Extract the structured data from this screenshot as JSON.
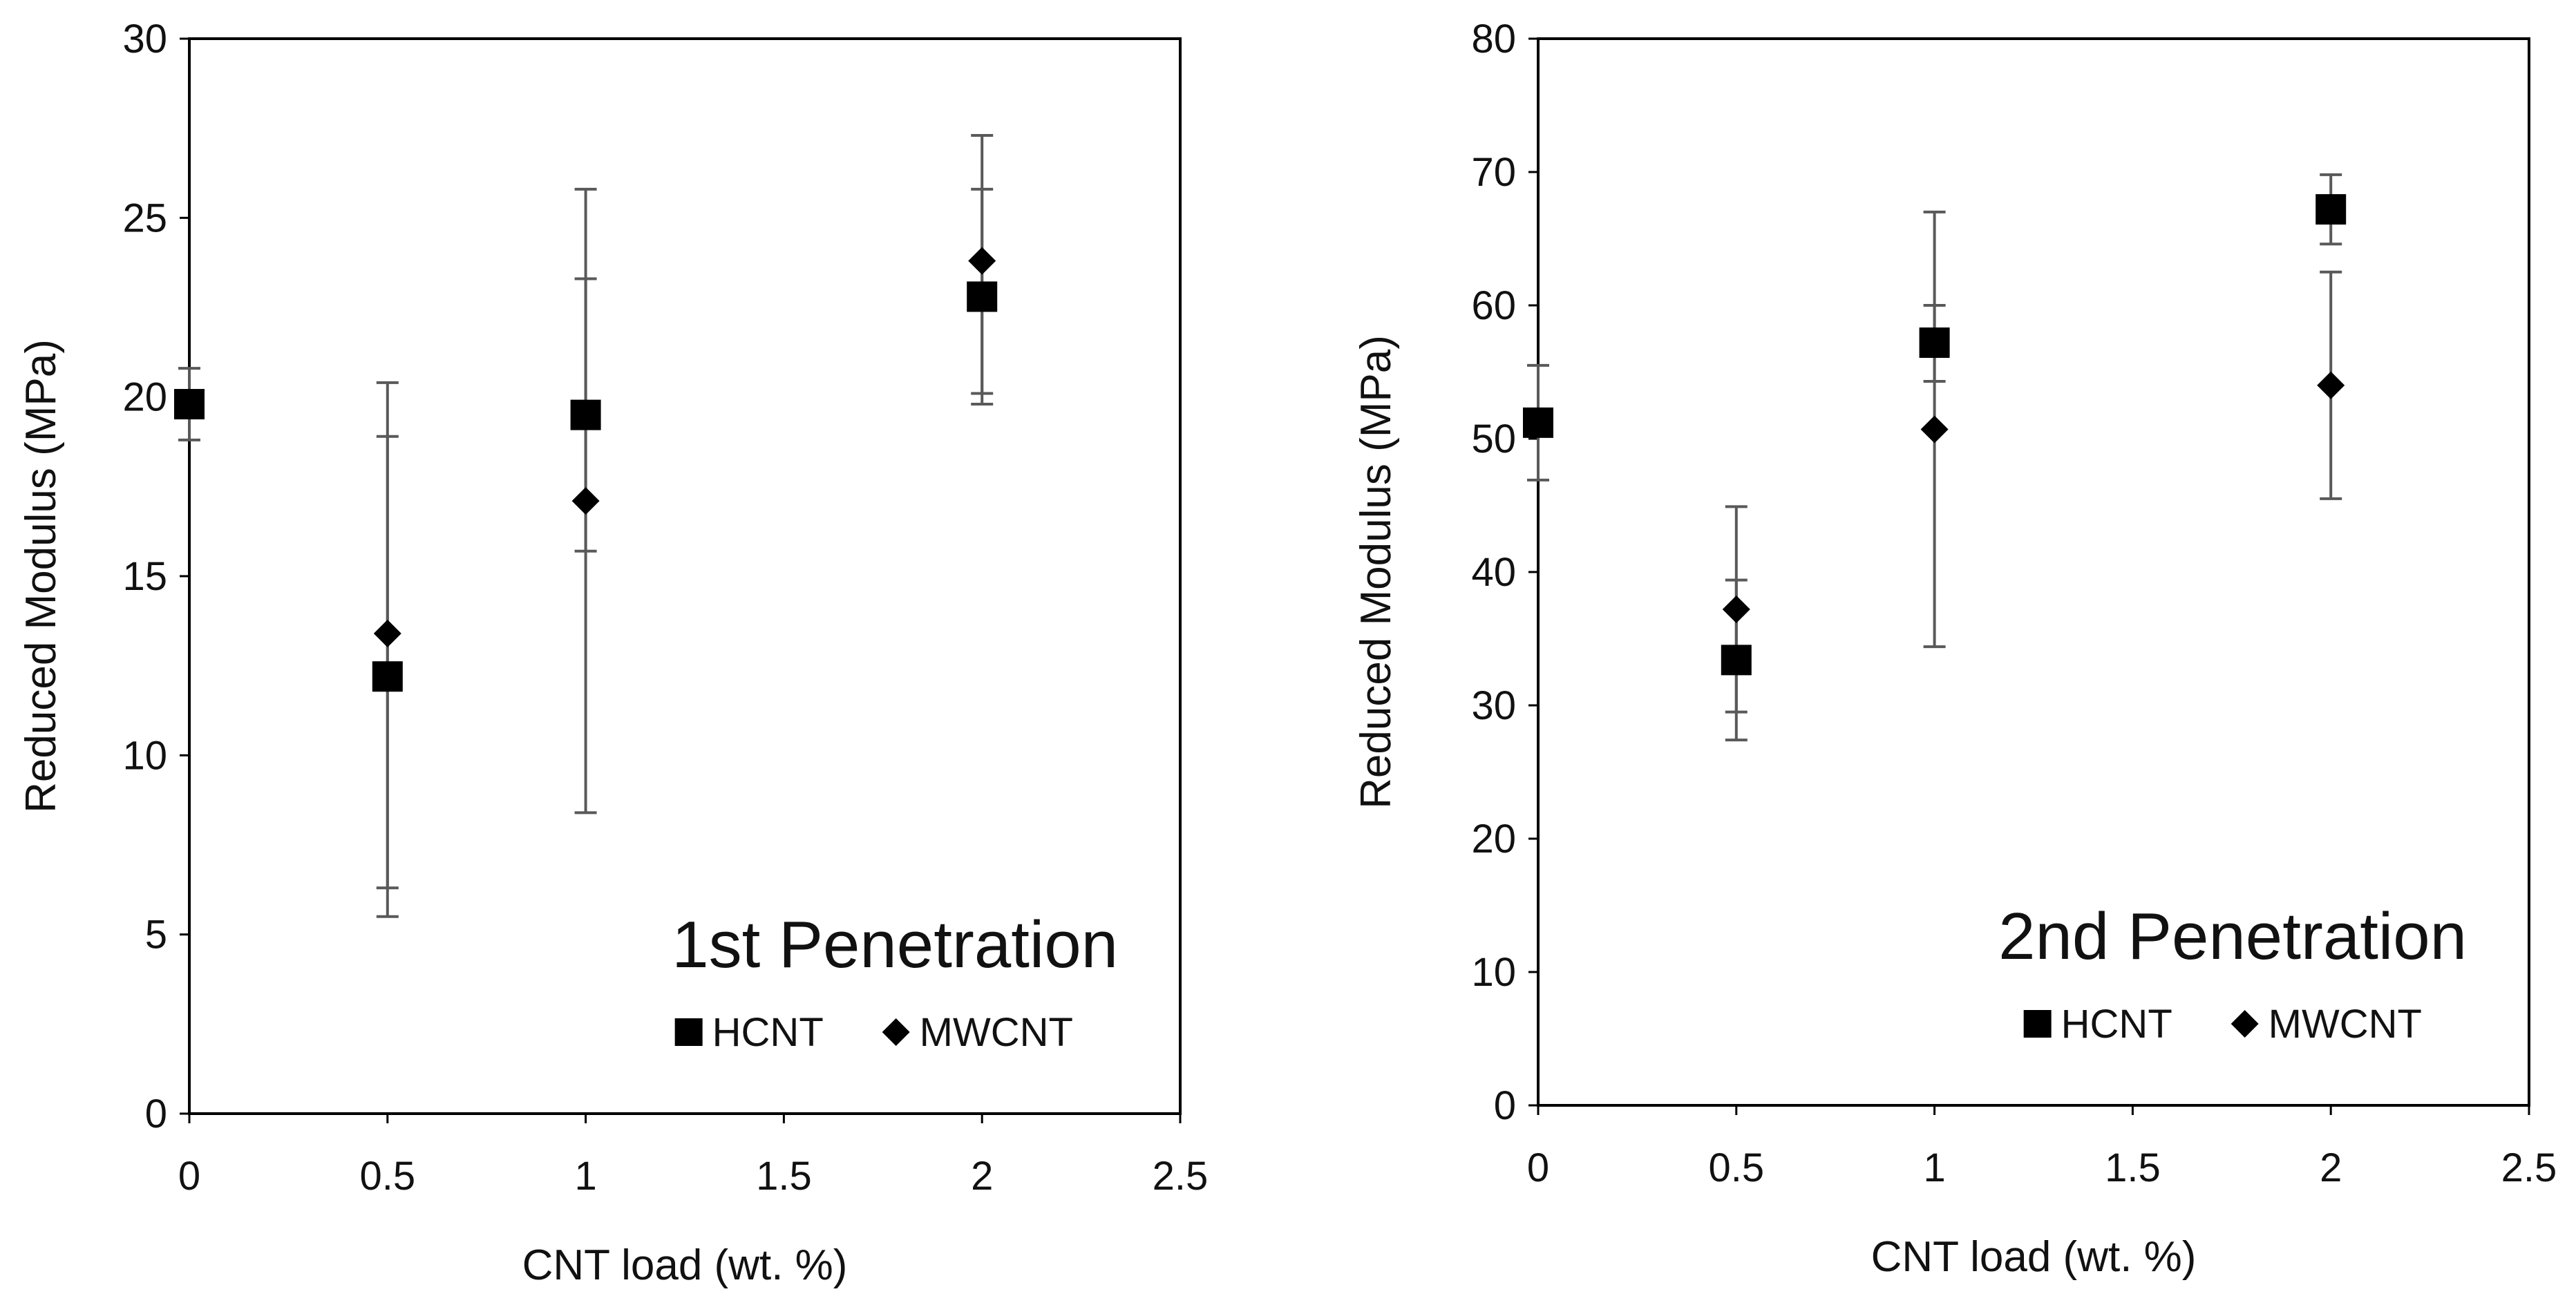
{
  "colors": {
    "marker": "#000000",
    "errorbar": "#595959",
    "frame": "#000000",
    "text": "#111111"
  },
  "chart_data": [
    {
      "type": "scatter",
      "annotation": "1st Penetration",
      "xlabel": "CNT load (wt. %)",
      "ylabel": "Reduced Modulus (MPa)",
      "xlim": [
        0,
        2.5
      ],
      "ylim": [
        0,
        30
      ],
      "xticks": [
        0,
        0.5,
        1,
        1.5,
        2,
        2.5
      ],
      "xtick_labels": [
        "0",
        "0.5",
        "1",
        "1.5",
        "2",
        "2.5"
      ],
      "yticks": [
        0,
        5,
        10,
        15,
        20,
        25,
        30
      ],
      "ytick_labels": [
        "0",
        "5",
        "10",
        "15",
        "20",
        "25",
        "30"
      ],
      "legend_position": "bottom-right",
      "series": [
        {
          "name": "HCNT",
          "marker": "square",
          "x": [
            0,
            0.5,
            1,
            2
          ],
          "y": [
            19.8,
            12.2,
            19.5,
            22.8
          ],
          "err_low": [
            18.8,
            6.3,
            15.7,
            20.1
          ],
          "err_high": [
            20.8,
            18.9,
            23.3,
            25.8
          ]
        },
        {
          "name": "MWCNT",
          "marker": "diamond",
          "x": [
            0.5,
            1,
            2
          ],
          "y": [
            13.4,
            17.1,
            23.8
          ],
          "err_low": [
            5.5,
            8.4,
            19.8
          ],
          "err_high": [
            20.4,
            25.8,
            27.3
          ]
        }
      ]
    },
    {
      "type": "scatter",
      "annotation": "2nd Penetration",
      "xlabel": "CNT load (wt. %)",
      "ylabel": "Reduced Modulus (MPa)",
      "xlim": [
        0,
        2.5
      ],
      "ylim": [
        0,
        80
      ],
      "xticks": [
        0,
        0.5,
        1,
        1.5,
        2,
        2.5
      ],
      "xtick_labels": [
        "0",
        "0.5",
        "1",
        "1.5",
        "2",
        "2.5"
      ],
      "yticks": [
        0,
        10,
        20,
        30,
        40,
        50,
        60,
        70,
        80
      ],
      "ytick_labels": [
        "0",
        "10",
        "20",
        "30",
        "40",
        "50",
        "60",
        "70",
        "80"
      ],
      "legend_position": "bottom-right",
      "series": [
        {
          "name": "HCNT",
          "marker": "square",
          "x": [
            0,
            0.5,
            1,
            2
          ],
          "y": [
            51.2,
            33.4,
            57.2,
            67.2
          ],
          "err_low": [
            46.9,
            27.4,
            54.3,
            64.6
          ],
          "err_high": [
            55.5,
            39.4,
            60.0,
            69.8
          ]
        },
        {
          "name": "MWCNT",
          "marker": "diamond",
          "x": [
            0.5,
            1,
            2
          ],
          "y": [
            37.2,
            50.7,
            54.0
          ],
          "err_low": [
            29.5,
            34.4,
            45.5
          ],
          "err_high": [
            44.9,
            67.0,
            62.5
          ]
        }
      ]
    }
  ]
}
